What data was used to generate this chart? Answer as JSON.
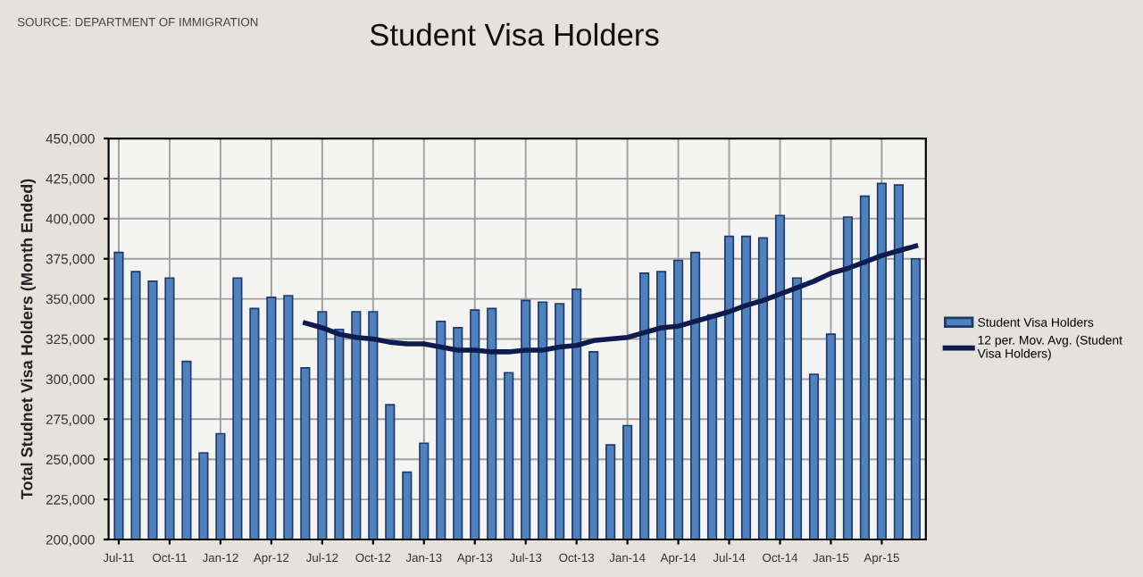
{
  "chart_data": {
    "type": "bar",
    "title": "Student Visa Holders",
    "ylabel": "Total Studnet Visa Holders (Month Ended)",
    "annotations": [
      "SOURCE: DEPARTMENT OF IMMIGRATION"
    ],
    "categories": [
      "Jul-11",
      null,
      null,
      "Oct-11",
      null,
      null,
      "Jan-12",
      null,
      null,
      "Apr-12",
      null,
      null,
      "Jul-12",
      null,
      null,
      "Oct-12",
      null,
      null,
      "Jan-13",
      null,
      null,
      "Apr-13",
      null,
      null,
      "Jul-13",
      null,
      null,
      "Oct-13",
      null,
      null,
      "Jan-14",
      null,
      null,
      "Apr-14",
      null,
      null,
      "Jul-14",
      null,
      null,
      "Oct-14",
      null,
      null,
      "Jan-15",
      null,
      null,
      "Apr-15",
      null,
      null
    ],
    "series": [
      {
        "name": "Student Visa Holders",
        "color": "#4f81bd",
        "values": [
          379000,
          367000,
          361000,
          363000,
          311000,
          254000,
          266000,
          363000,
          344000,
          351000,
          352000,
          307000,
          342000,
          331000,
          342000,
          342000,
          284000,
          242000,
          260000,
          336000,
          332000,
          343000,
          344000,
          304000,
          349000,
          348000,
          347000,
          356000,
          317000,
          259000,
          271000,
          366000,
          367000,
          374000,
          379000,
          340000,
          389000,
          389000,
          388000,
          402000,
          363000,
          303000,
          328000,
          401000,
          414000,
          422000,
          421000,
          375000
        ]
      },
      {
        "name": "12 per. Mov. Avg. (Student\nVisa Holders)",
        "type": "line",
        "color": "#0d1b4f",
        "line_style": "solid",
        "marker": "none",
        "values": [
          null,
          null,
          null,
          null,
          null,
          null,
          null,
          null,
          null,
          null,
          null,
          335000,
          332000,
          328000,
          326000,
          325000,
          323000,
          322000,
          322000,
          320000,
          318000,
          318000,
          317000,
          317000,
          318000,
          318000,
          320000,
          321000,
          324000,
          325000,
          326000,
          329000,
          332000,
          333000,
          336000,
          339000,
          342000,
          346000,
          349000,
          353000,
          357000,
          361000,
          366000,
          369000,
          373000,
          377000,
          380000,
          383000
        ]
      }
    ],
    "ylim": [
      200000,
      450000
    ],
    "yticks": [
      {
        "value": 200000,
        "label": "200,000"
      },
      {
        "value": 225000,
        "label": "225,000"
      },
      {
        "value": 250000,
        "label": "250,000"
      },
      {
        "value": 275000,
        "label": "275,000"
      },
      {
        "value": 300000,
        "label": "300,000"
      },
      {
        "value": 325000,
        "label": "325,000"
      },
      {
        "value": 350000,
        "label": "350,000"
      },
      {
        "value": 375000,
        "label": "375,000"
      },
      {
        "value": 400000,
        "label": "400,000"
      },
      {
        "value": 425000,
        "label": "425,000"
      },
      {
        "value": 450000,
        "label": "450,000"
      }
    ],
    "grid": true,
    "legend": "right"
  }
}
